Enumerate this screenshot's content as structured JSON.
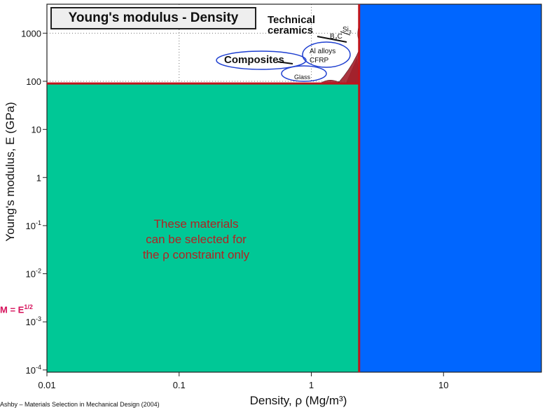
{
  "chart_data": {
    "type": "area",
    "title": "Young's modulus - Density",
    "xlabel": "Density, ρ  (Mg/m³)",
    "ylabel": "Young's modulus, E (GPa)",
    "x_scale": "log",
    "y_scale": "log",
    "xlim": [
      0.01,
      55
    ],
    "ylim": [
      9e-05,
      4000
    ],
    "x_ticks": [
      {
        "value": 0.01,
        "label": "0.01"
      },
      {
        "value": 0.1,
        "label": "0.1"
      },
      {
        "value": 1,
        "label": "1"
      },
      {
        "value": 10,
        "label": "10"
      }
    ],
    "y_ticks": [
      {
        "value": 0.0001,
        "base": "10",
        "exp": "-4"
      },
      {
        "value": 0.001,
        "base": "10",
        "exp": "-3"
      },
      {
        "value": 0.01,
        "base": "10",
        "exp": "-2"
      },
      {
        "value": 0.1,
        "base": "10",
        "exp": "-1"
      },
      {
        "value": 1,
        "base": "1",
        "exp": ""
      },
      {
        "value": 10,
        "base": "10",
        "exp": ""
      },
      {
        "value": 100,
        "base": "100",
        "exp": ""
      },
      {
        "value": 1000,
        "base": "1000",
        "exp": ""
      }
    ],
    "grid": true,
    "constraint_density": 2.3,
    "constraint_modulus": 90,
    "regions": [
      {
        "name": "selected-region",
        "x_range": [
          0.01,
          2.3
        ],
        "y_range": [
          9e-05,
          90
        ],
        "color": "#00c896"
      },
      {
        "name": "rejected-region",
        "x_range": [
          2.3,
          55
        ],
        "y_range": [
          9e-05,
          4000
        ],
        "color": "#0066ff"
      }
    ],
    "region_note": [
      "These materials",
      "can be selected for",
      "the ρ constraint only"
    ],
    "annotations": {
      "technical_ceramics": [
        "Technical",
        "ceramics"
      ],
      "composites": "Composites",
      "al_alloys": "Al alloys",
      "cfrp": "CFRP",
      "glass": "Glass",
      "si": "Si",
      "si_sub": "3",
      "b4c": "B",
      "b4c_sub": "4",
      "b4c_tail": "C"
    },
    "index_label": "M = E",
    "index_exp": "1/2",
    "line_color": "#c0141b",
    "blob_color": "#a3202b"
  },
  "caption": "Ashby – Materials Selection in Mechanical Design (2004)"
}
